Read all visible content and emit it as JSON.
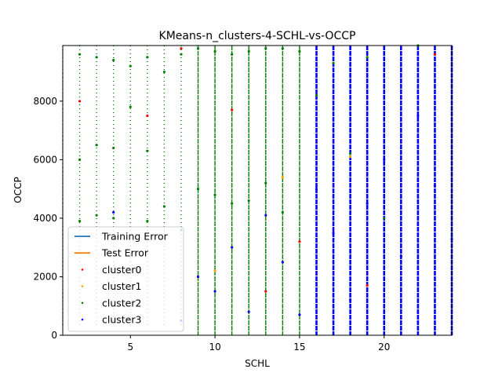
{
  "chart_data": {
    "type": "scatter",
    "title": "KMeans-n_clusters-4-SCHL-vs-OCCP",
    "xlabel": "SCHL",
    "ylabel": "OCCP",
    "xlim": [
      1,
      24
    ],
    "ylim": [
      0,
      9900
    ],
    "xticks": [
      5,
      10,
      15,
      20
    ],
    "yticks": [
      0,
      2000,
      4000,
      6000,
      8000
    ],
    "grid": false,
    "legend_position": "lower-left",
    "legend": [
      {
        "label": "Training Error",
        "kind": "line",
        "color": "#1f77b4"
      },
      {
        "label": "Test Error",
        "kind": "line",
        "color": "#ff7f0e"
      },
      {
        "label": "cluster0",
        "kind": "marker",
        "color": "#ff0000"
      },
      {
        "label": "cluster1",
        "kind": "marker",
        "color": "#ffa500"
      },
      {
        "label": "cluster2",
        "kind": "marker",
        "color": "#008000"
      },
      {
        "label": "cluster3",
        "kind": "marker",
        "color": "#0000ff"
      }
    ],
    "series": [
      {
        "name": "cluster0",
        "color": "#ff0000",
        "x": [
          2,
          6,
          8,
          11,
          13,
          15,
          19,
          23
        ],
        "y": [
          8000,
          7500,
          9800,
          7700,
          1500,
          3200,
          1700,
          9600
        ]
      },
      {
        "name": "cluster1",
        "color": "#ffa500",
        "x": [
          10,
          14,
          18
        ],
        "y": [
          2200,
          5400,
          6100
        ]
      },
      {
        "name": "cluster2",
        "color": "#008000",
        "x": [
          2,
          2,
          2,
          3,
          3,
          3,
          4,
          4,
          4,
          5,
          5,
          6,
          6,
          6,
          7,
          7,
          8,
          8,
          9,
          9,
          10,
          10,
          11,
          11,
          12,
          12,
          13,
          13,
          14,
          14,
          15,
          16,
          17,
          18,
          19,
          20,
          22
        ],
        "y": [
          9600,
          6000,
          3900,
          9500,
          6500,
          4100,
          9400,
          6400,
          4000,
          9200,
          7800,
          9500,
          6300,
          3900,
          9000,
          4400,
          9600,
          3600,
          9800,
          5000,
          9700,
          4800,
          9600,
          4500,
          9700,
          4600,
          9800,
          5200,
          9800,
          4200,
          9700,
          8200,
          9300,
          6200,
          9500,
          4000,
          9900
        ]
      },
      {
        "name": "cluster3",
        "color": "#0000ff",
        "x": [
          4,
          8,
          9,
          10,
          11,
          12,
          13,
          14,
          15,
          16,
          17,
          18,
          19,
          20,
          21,
          22,
          23,
          24
        ],
        "y": [
          4200,
          500,
          2000,
          1500,
          3000,
          800,
          4100,
          2500,
          700,
          5000,
          3500,
          1200,
          4500,
          6000,
          2700,
          7500,
          5100,
          3300
        ]
      }
    ],
    "columns_x": [
      1,
      2,
      3,
      4,
      5,
      6,
      7,
      8,
      9,
      10,
      11,
      12,
      13,
      14,
      15,
      16,
      17,
      18,
      19,
      20,
      21,
      22,
      23,
      24
    ]
  }
}
